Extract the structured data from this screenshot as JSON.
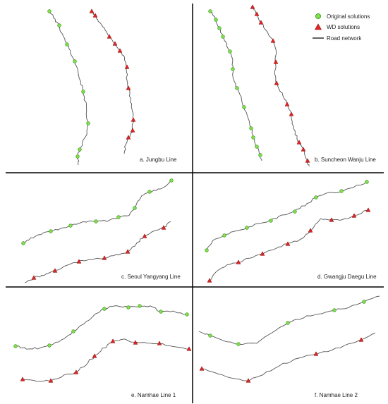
{
  "legend": {
    "original": "Original solutions",
    "wd": "WD solutions",
    "road": "Road network"
  },
  "colors": {
    "original": "#7ee04a",
    "original_stroke": "#3f8f1e",
    "wd": "#e02424",
    "wd_stroke": "#8a0f0f",
    "road": "#555555",
    "divider": "#000000"
  },
  "panels": [
    {
      "caption": "a. Jungbu Line"
    },
    {
      "caption": "b. Suncheon Wanju Line"
    },
    {
      "caption": "c. Seoul Yangyang Line"
    },
    {
      "caption": "d. Gwangju Daegu Line"
    },
    {
      "caption": "e. Namhae Line 1"
    },
    {
      "caption": "f. Namhae Line 2"
    }
  ]
}
